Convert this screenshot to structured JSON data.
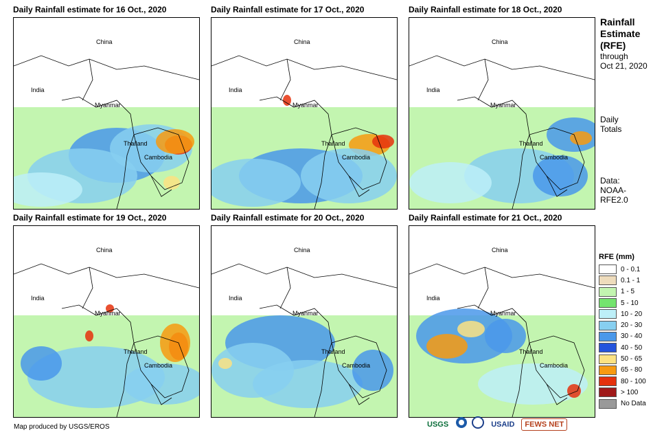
{
  "panels": [
    {
      "title": "Daily Rainfall estimate for 16 Oct., 2020"
    },
    {
      "title": "Daily Rainfall estimate for 17 Oct., 2020"
    },
    {
      "title": "Daily Rainfall estimate for 18 Oct., 2020"
    },
    {
      "title": "Daily Rainfall estimate for 19 Oct., 2020"
    },
    {
      "title": "Daily Rainfall estimate for 20 Oct., 2020"
    },
    {
      "title": "Daily Rainfall estimate for 21 Oct., 2020"
    }
  ],
  "map_labels": {
    "china": "China",
    "india": "India",
    "myanmar": "Myanmar",
    "thailand": "Thailand",
    "cambodia": "Cambodia"
  },
  "side": {
    "title_line1": "Rainfall",
    "title_line2": "Estimate",
    "title_line3": "(RFE)",
    "through": "through",
    "date": "Oct 21, 2020",
    "daily1": "Daily",
    "daily2": "Totals",
    "data1": "Data:",
    "data2": "NOAA-",
    "data3": "RFE2.0"
  },
  "legend": {
    "title": "RFE (mm)",
    "items": [
      {
        "label": "0 - 0.1",
        "color": "#ffffff"
      },
      {
        "label": "0.1 - 1",
        "color": "#eedcbc"
      },
      {
        "label": "1 - 5",
        "color": "#c3f5b0"
      },
      {
        "label": "5 - 10",
        "color": "#74e46e"
      },
      {
        "label": "10 - 20",
        "color": "#bdeff8"
      },
      {
        "label": "20 - 30",
        "color": "#87cff0"
      },
      {
        "label": "30 - 40",
        "color": "#4a98ea"
      },
      {
        "label": "40 - 50",
        "color": "#2454dd"
      },
      {
        "label": "50 - 65",
        "color": "#fbe282"
      },
      {
        "label": "65 - 80",
        "color": "#f79a11"
      },
      {
        "label": "80 - 100",
        "color": "#e5310d"
      },
      {
        "label": "> 100",
        "color": "#a01a1a"
      },
      {
        "label": "No Data",
        "color": "#999999"
      }
    ]
  },
  "credit": "Map produced by USGS/EROS",
  "logos": {
    "usgs": "USGS",
    "usaid": "USAID",
    "fews": "FEWS NET"
  }
}
